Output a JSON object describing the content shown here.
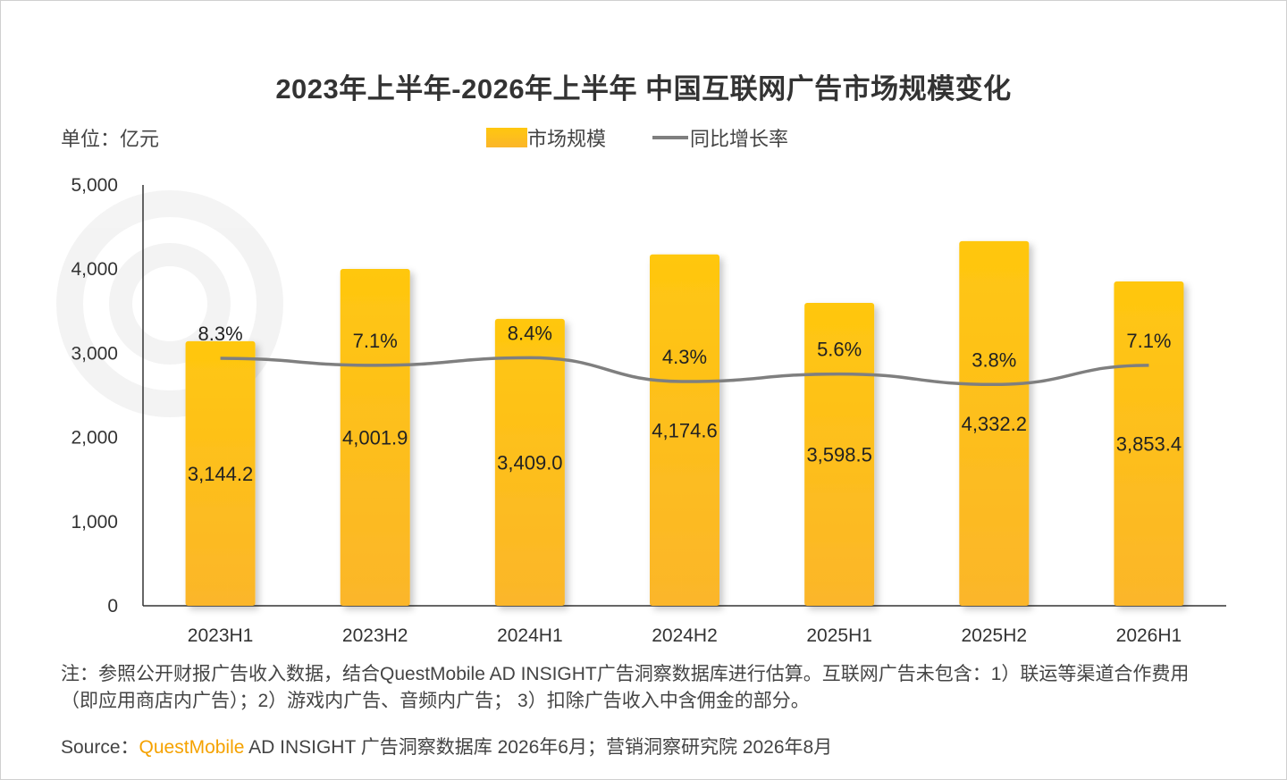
{
  "title": "2023年上半年-2026年上半年 中国互联网广告市场规模变化",
  "unit_label": "单位：亿元",
  "legend": {
    "bar_label": "市场规模",
    "line_label": "同比增长率"
  },
  "colors": {
    "bar_top": "#ffc70f",
    "bar_bottom": "#fbb62a",
    "line": "#7f7f7f"
  },
  "chart_data": {
    "type": "bar",
    "categories": [
      "2023H1",
      "2023H2",
      "2024H1",
      "2024H2",
      "2025H1",
      "2025H2",
      "2026H1"
    ],
    "series": [
      {
        "name": "市场规模",
        "type": "bar",
        "values": [
          3144.2,
          4001.9,
          3409.0,
          4174.6,
          3598.5,
          4332.2,
          3853.4
        ],
        "labels": [
          "3,144.2",
          "4,001.9",
          "3,409.0",
          "4,174.6",
          "3,598.5",
          "4,332.2",
          "3,853.4"
        ]
      },
      {
        "name": "同比增长率",
        "type": "line",
        "values": [
          8.3,
          7.1,
          8.4,
          4.3,
          5.6,
          3.8,
          7.1
        ],
        "labels": [
          "8.3%",
          "7.1%",
          "8.4%",
          "4.3%",
          "5.6%",
          "3.8%",
          "7.1%"
        ]
      }
    ],
    "yaxis": {
      "ylim": [
        0,
        5000
      ],
      "ticks": [
        0,
        1000,
        2000,
        3000,
        4000,
        5000
      ],
      "tick_labels": [
        "0",
        "1,000",
        "2,000",
        "3,000",
        "4,000",
        "5,000"
      ]
    },
    "grid": false,
    "legend_position": "top-center"
  },
  "note": "注：参照公开财报广告收入数据，结合QuestMobile AD INSIGHT广告洞察数据库进行估算。互联网广告未包含：1）联运等渠道合作费用（即应用商店内广告）；2）游戏内广告、音频内广告； 3）扣除广告收入中含佣金的部分。",
  "source": {
    "prefix": "Source：",
    "brand": "QuestMobile",
    "suffix": " AD INSIGHT 广告洞察数据库 2026年6月；营销洞察研究院 2026年8月"
  }
}
